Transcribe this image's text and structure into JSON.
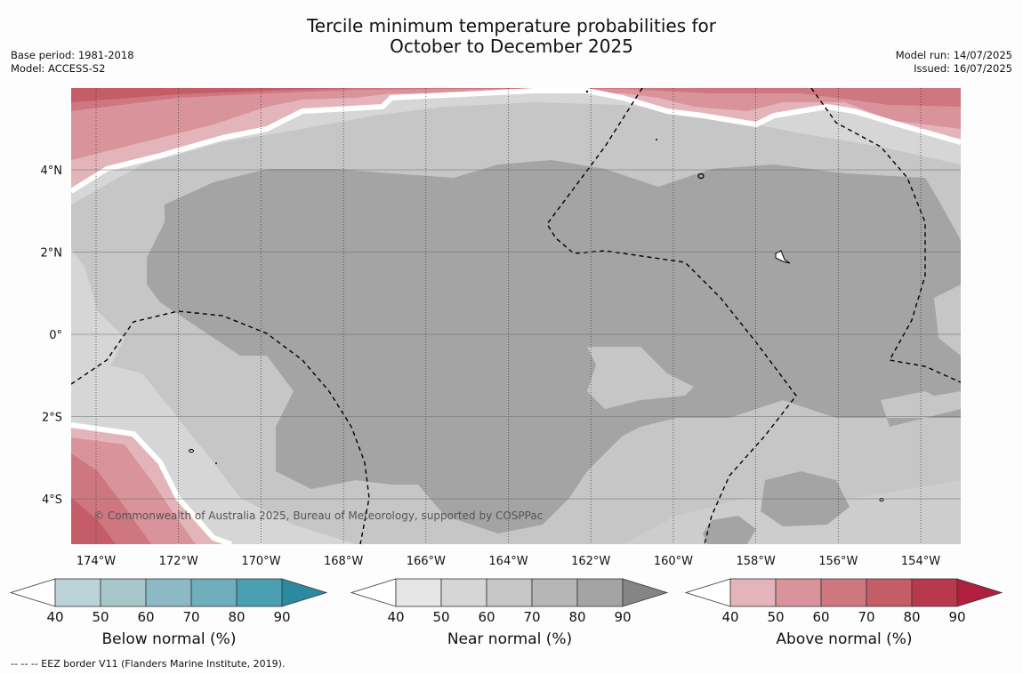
{
  "title_line1": "Tercile minimum temperature probabilities for",
  "title_line2": "October to December 2025",
  "base_period": "Base period: 1981-2018",
  "model": "Model: ACCESS-S2",
  "model_run": "Model run: 14/07/2025",
  "issued": "Issued: 16/07/2025",
  "copyright": "© Commonwealth of Australia 2025, Bureau of Meteorology, supported by COSPPac",
  "footnote": "--  --  -- EEZ border V11 (Flanders Marine Institute, 2019).",
  "map": {
    "lon_labels": [
      "174°W",
      "172°W",
      "170°W",
      "168°W",
      "166°W",
      "164°W",
      "162°W",
      "160°W",
      "158°W",
      "156°W",
      "154°W"
    ],
    "lat_labels": [
      "4°N",
      "2°N",
      "0°",
      "2°S",
      "4°S"
    ]
  },
  "colors": {
    "below": [
      "#ffffff",
      "#bcd3da",
      "#a6c6cc",
      "#8bb9c4",
      "#70aebb",
      "#4aa0b0",
      "#2b8aa0"
    ],
    "near": [
      "#ffffff",
      "#e6e6e6",
      "#d6d6d6",
      "#c6c6c6",
      "#b6b6b6",
      "#a4a4a4",
      "#858585"
    ],
    "above": [
      "#ffffff",
      "#e3b5ba",
      "#d9939a",
      "#cf7780",
      "#c45d68",
      "#b8394d",
      "#b0203e"
    ]
  },
  "colorbars": [
    {
      "id": "below",
      "label": "Below normal (%)",
      "ticks": [
        "40",
        "50",
        "60",
        "70",
        "80",
        "90"
      ]
    },
    {
      "id": "near",
      "label": "Near normal (%)",
      "ticks": [
        "40",
        "50",
        "60",
        "70",
        "80",
        "90"
      ]
    },
    {
      "id": "above",
      "label": "Above normal (%)",
      "ticks": [
        "40",
        "50",
        "60",
        "70",
        "80",
        "90"
      ]
    }
  ]
}
